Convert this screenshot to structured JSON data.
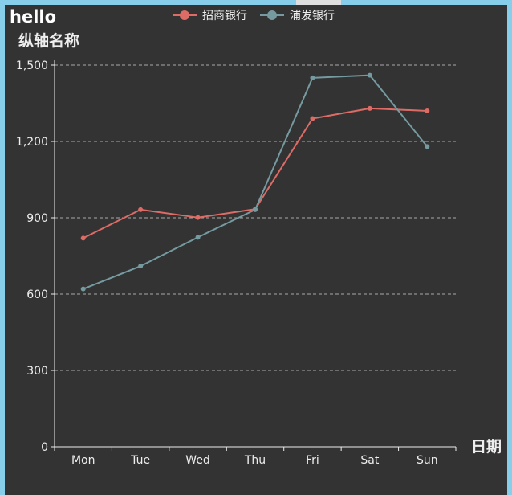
{
  "chart_data": {
    "type": "line",
    "title": "hello",
    "ylabel": "纵轴名称",
    "xlabel": "日期",
    "categories": [
      "Mon",
      "Tue",
      "Wed",
      "Thu",
      "Fri",
      "Sat",
      "Sun"
    ],
    "series": [
      {
        "name": "招商银行",
        "color": "#dd6b66",
        "values": [
          820,
          932,
          901,
          934,
          1290,
          1330,
          1320
        ]
      },
      {
        "name": "浦发银行",
        "color": "#759aa0",
        "values": [
          620,
          710,
          823,
          932,
          1450,
          1460,
          1180
        ]
      }
    ],
    "yticks": [
      "0",
      "300",
      "600",
      "900",
      "1,200",
      "1,500"
    ],
    "ylim": [
      0,
      1500
    ],
    "grid": "dashed horizontal",
    "legend_position": "top-center",
    "background": "#333333"
  }
}
